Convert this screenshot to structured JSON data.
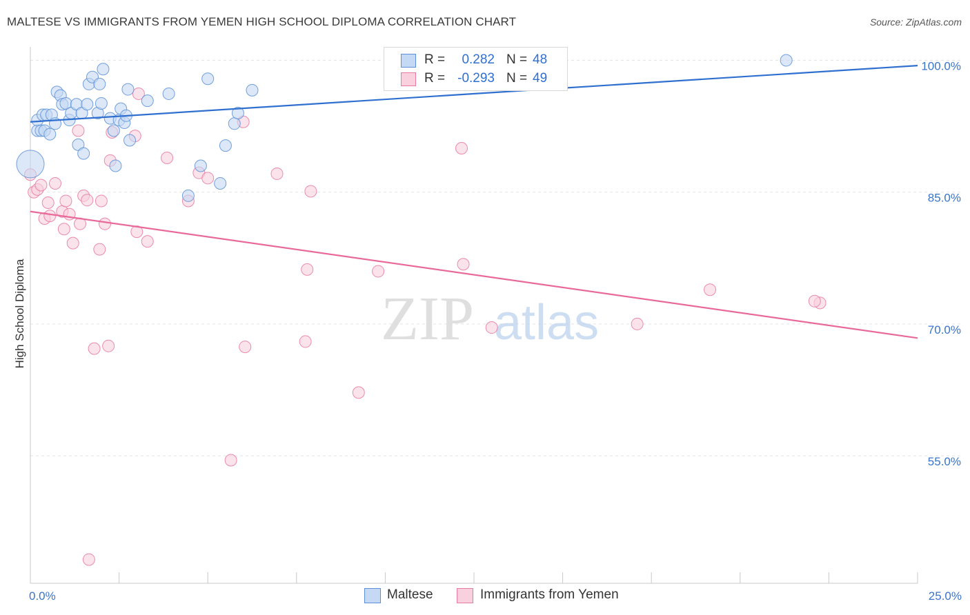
{
  "header": {
    "title": "MALTESE VS IMMIGRANTS FROM YEMEN HIGH SCHOOL DIPLOMA CORRELATION CHART",
    "source": "Source: ZipAtlas.com"
  },
  "watermark": {
    "zip": "ZIP",
    "atlas": "atlas"
  },
  "legend": {
    "rows": [
      {
        "r_label": "R =",
        "r_value": "0.282",
        "n_label": "N =",
        "n_value": "48",
        "color": "#5b8fd8",
        "fill": "#c5d9f4"
      },
      {
        "r_label": "R =",
        "r_value": "-0.293",
        "n_label": "N =",
        "n_value": "49",
        "color": "#e8789f",
        "fill": "#f9d0de"
      }
    ]
  },
  "chart_data": {
    "type": "scatter",
    "title": "MALTESE VS IMMIGRANTS FROM YEMEN HIGH SCHOOL DIPLOMA CORRELATION CHART",
    "xlabel": "",
    "ylabel": "High School Diploma",
    "xlim": [
      0,
      25
    ],
    "ylim": [
      40.5,
      102
    ],
    "x_tick_labels": [
      "0.0%",
      "25.0%"
    ],
    "y_ticks": [
      55,
      70,
      85,
      100
    ],
    "y_tick_labels": [
      "55.0%",
      "70.0%",
      "85.0%",
      "100.0%"
    ],
    "grid": "horizontal dashed",
    "legend_placement": "top-center and bottom",
    "series": [
      {
        "name": "Maltese",
        "color": "#5b8fd8",
        "fill": "#c5d9f4",
        "trend": {
          "x": [
            0,
            25
          ],
          "y": [
            93.0,
            99.4
          ]
        },
        "points": [
          [
            0.0,
            88.2
          ],
          [
            0.2,
            92.0
          ],
          [
            0.2,
            93.2
          ],
          [
            0.3,
            92.0
          ],
          [
            0.35,
            93.8
          ],
          [
            0.4,
            92.0
          ],
          [
            0.45,
            93.8
          ],
          [
            0.55,
            91.6
          ],
          [
            0.6,
            93.8
          ],
          [
            0.7,
            92.8
          ],
          [
            0.75,
            96.4
          ],
          [
            0.85,
            96.0
          ],
          [
            0.9,
            95.0
          ],
          [
            1.0,
            95.1
          ],
          [
            1.1,
            93.2
          ],
          [
            1.15,
            94.0
          ],
          [
            1.3,
            95.0
          ],
          [
            1.35,
            90.4
          ],
          [
            1.45,
            94.0
          ],
          [
            1.5,
            89.4
          ],
          [
            1.6,
            95.0
          ],
          [
            1.65,
            97.3
          ],
          [
            1.75,
            98.1
          ],
          [
            1.9,
            94.0
          ],
          [
            1.95,
            97.3
          ],
          [
            2.0,
            95.1
          ],
          [
            2.05,
            99.0
          ],
          [
            2.25,
            93.4
          ],
          [
            2.35,
            92.0
          ],
          [
            2.4,
            88.0
          ],
          [
            2.5,
            93.2
          ],
          [
            2.55,
            94.5
          ],
          [
            2.65,
            92.9
          ],
          [
            2.7,
            93.7
          ],
          [
            2.75,
            96.7
          ],
          [
            2.8,
            90.9
          ],
          [
            3.3,
            95.4
          ],
          [
            3.9,
            96.2
          ],
          [
            4.45,
            84.6
          ],
          [
            4.8,
            88.0
          ],
          [
            5.0,
            97.9
          ],
          [
            5.35,
            86.0
          ],
          [
            5.5,
            90.3
          ],
          [
            5.75,
            92.8
          ],
          [
            5.85,
            94.0
          ],
          [
            6.25,
            96.6
          ],
          [
            14.5,
            100.2
          ],
          [
            21.3,
            100.0
          ]
        ]
      },
      {
        "name": "Immigrants from Yemen",
        "color": "#e8789f",
        "fill": "#f9d0de",
        "trend": {
          "x": [
            0,
            25
          ],
          "y": [
            82.8,
            68.4
          ]
        },
        "points": [
          [
            0.0,
            87.0
          ],
          [
            0.1,
            85.0
          ],
          [
            0.2,
            85.3
          ],
          [
            0.3,
            85.8
          ],
          [
            0.4,
            82.0
          ],
          [
            0.5,
            83.8
          ],
          [
            0.55,
            82.3
          ],
          [
            0.7,
            86.0
          ],
          [
            0.9,
            82.8
          ],
          [
            0.95,
            80.8
          ],
          [
            1.0,
            84.0
          ],
          [
            1.1,
            82.5
          ],
          [
            1.2,
            79.2
          ],
          [
            1.35,
            92.0
          ],
          [
            1.4,
            81.4
          ],
          [
            1.5,
            84.6
          ],
          [
            1.6,
            84.1
          ],
          [
            1.65,
            43.2
          ],
          [
            1.8,
            67.2
          ],
          [
            1.95,
            78.5
          ],
          [
            2.0,
            84.0
          ],
          [
            2.1,
            81.4
          ],
          [
            2.2,
            67.5
          ],
          [
            2.25,
            88.6
          ],
          [
            2.3,
            91.8
          ],
          [
            2.95,
            91.4
          ],
          [
            3.0,
            80.5
          ],
          [
            3.05,
            96.2
          ],
          [
            3.3,
            79.4
          ],
          [
            3.85,
            88.9
          ],
          [
            4.45,
            84.0
          ],
          [
            4.75,
            87.2
          ],
          [
            5.0,
            86.6
          ],
          [
            5.65,
            54.5
          ],
          [
            6.0,
            93.0
          ],
          [
            6.05,
            67.4
          ],
          [
            6.95,
            87.1
          ],
          [
            7.75,
            68.0
          ],
          [
            7.8,
            76.2
          ],
          [
            7.9,
            85.1
          ],
          [
            9.25,
            62.2
          ],
          [
            9.8,
            76.0
          ],
          [
            12.15,
            90.0
          ],
          [
            12.2,
            76.8
          ],
          [
            13.0,
            69.6
          ],
          [
            17.1,
            70.0
          ],
          [
            19.15,
            73.9
          ],
          [
            22.25,
            72.4
          ],
          [
            22.1,
            72.6
          ]
        ]
      }
    ]
  }
}
